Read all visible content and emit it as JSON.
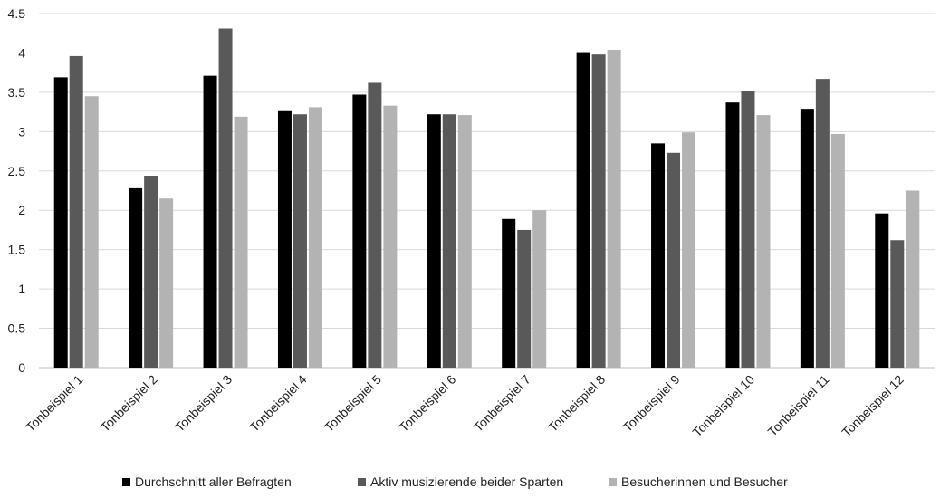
{
  "chart_data": {
    "type": "bar",
    "title": "",
    "xlabel": "",
    "ylabel": "",
    "ylim": [
      0,
      4.5
    ],
    "yticks": [
      0,
      0.5,
      1,
      1.5,
      2,
      2.5,
      3,
      3.5,
      4,
      4.5
    ],
    "ytick_labels": [
      "0",
      "0.5",
      "1",
      "1.5",
      "2",
      "2.5",
      "3",
      "3.5",
      "4",
      "4.5"
    ],
    "grid": true,
    "legend_position": "bottom",
    "categories": [
      "Tonbeispiel 1",
      "Tonbeispiel 2",
      "Tonbeispiel 3",
      "Tonbeispiel 4",
      "Tonbeispiel 5",
      "Tonbeispiel 6",
      "Tonbeispiel 7",
      "Tonbeispiel 8",
      "Tonbeispiel 9",
      "Tonbeispiel 10",
      "Tonbeispiel 11",
      "Tonbeispiel 12"
    ],
    "series": [
      {
        "name": "Durchschnitt aller Befragten",
        "color": "#000000",
        "values": [
          3.69,
          2.28,
          3.71,
          3.26,
          3.47,
          3.22,
          1.89,
          4.01,
          2.85,
          3.37,
          3.29,
          1.96
        ]
      },
      {
        "name": "Aktiv musizierende beider Sparten",
        "color": "#595959",
        "values": [
          3.96,
          2.44,
          4.31,
          3.22,
          3.62,
          3.22,
          1.75,
          3.98,
          2.73,
          3.52,
          3.67,
          1.62
        ]
      },
      {
        "name": "Besucherinnen und Besucher",
        "color": "#b3b3b3",
        "values": [
          3.45,
          2.15,
          3.19,
          3.31,
          3.33,
          3.21,
          2.0,
          4.04,
          2.99,
          3.21,
          2.97,
          2.25
        ]
      }
    ]
  }
}
